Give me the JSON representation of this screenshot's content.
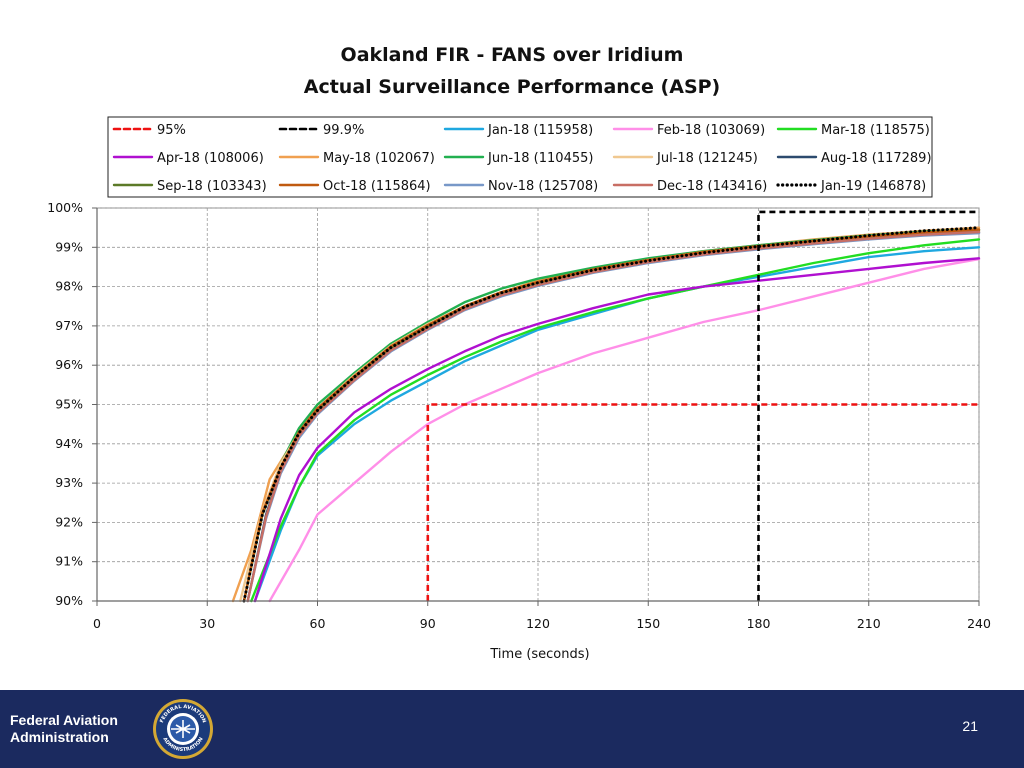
{
  "slide": {
    "title_line1": "Oakland FIR - FANS over Iridium",
    "title_line2": "Actual Surveillance Performance (ASP)",
    "page_number": "21"
  },
  "footer": {
    "agency_line1": "Federal Aviation",
    "agency_line2": "Administration",
    "seal_text_top": "FEDERAL AVIATION",
    "seal_text_bottom": "ADMINISTRATION",
    "background_color": "#1b2a5f"
  },
  "chart_data": {
    "type": "line",
    "title": "Oakland FIR - FANS over Iridium Actual Surveillance Performance (ASP)",
    "xlabel": "Time (seconds)",
    "ylabel": "",
    "xlim": [
      0,
      240
    ],
    "ylim": [
      90,
      100
    ],
    "x_ticks": [
      0,
      30,
      60,
      90,
      120,
      150,
      180,
      210,
      240
    ],
    "y_ticks": [
      90,
      91,
      92,
      93,
      94,
      95,
      96,
      97,
      98,
      99,
      100
    ],
    "x_tick_labels": [
      "0",
      "30",
      "60",
      "90",
      "120",
      "150",
      "180",
      "210",
      "240"
    ],
    "y_tick_labels": [
      "90%",
      "91%",
      "92%",
      "93%",
      "94%",
      "95%",
      "96%",
      "97%",
      "98%",
      "99%",
      "100%"
    ],
    "grid": true,
    "legend_position": "top",
    "reference_lines": [
      {
        "name": "95%",
        "label": "95%",
        "color": "#ee1111",
        "dash": "dashed",
        "points": [
          [
            90,
            90
          ],
          [
            90,
            95
          ],
          [
            240,
            95
          ]
        ]
      },
      {
        "name": "99.9%",
        "label": "99.9%",
        "color": "#000000",
        "dash": "dashed",
        "points": [
          [
            180,
            90
          ],
          [
            180,
            99.9
          ],
          [
            240,
            99.9
          ]
        ]
      }
    ],
    "series": [
      {
        "name": "Jan-18",
        "label": "Jan-18 (115958)",
        "color": "#1fa8e0",
        "points": [
          [
            43,
            90
          ],
          [
            50,
            91.8
          ],
          [
            55,
            92.9
          ],
          [
            60,
            93.7
          ],
          [
            70,
            94.5
          ],
          [
            80,
            95.1
          ],
          [
            90,
            95.6
          ],
          [
            100,
            96.1
          ],
          [
            110,
            96.5
          ],
          [
            120,
            96.9
          ],
          [
            135,
            97.3
          ],
          [
            150,
            97.7
          ],
          [
            165,
            98.0
          ],
          [
            180,
            98.25
          ],
          [
            195,
            98.5
          ],
          [
            210,
            98.75
          ],
          [
            225,
            98.9
          ],
          [
            240,
            99.0
          ]
        ]
      },
      {
        "name": "Feb-18",
        "label": "Feb-18 (103069)",
        "color": "#ff8fe8",
        "points": [
          [
            47,
            90
          ],
          [
            55,
            91.3
          ],
          [
            60,
            92.2
          ],
          [
            70,
            93.0
          ],
          [
            80,
            93.8
          ],
          [
            90,
            94.5
          ],
          [
            100,
            95.0
          ],
          [
            110,
            95.4
          ],
          [
            120,
            95.8
          ],
          [
            135,
            96.3
          ],
          [
            150,
            96.7
          ],
          [
            165,
            97.1
          ],
          [
            180,
            97.4
          ],
          [
            195,
            97.75
          ],
          [
            210,
            98.1
          ],
          [
            225,
            98.45
          ],
          [
            240,
            98.7
          ]
        ]
      },
      {
        "name": "Mar-18",
        "label": "Mar-18 (118575)",
        "color": "#22dd22",
        "points": [
          [
            42,
            90
          ],
          [
            50,
            91.9
          ],
          [
            55,
            92.9
          ],
          [
            60,
            93.75
          ],
          [
            70,
            94.6
          ],
          [
            80,
            95.25
          ],
          [
            90,
            95.75
          ],
          [
            100,
            96.2
          ],
          [
            110,
            96.6
          ],
          [
            120,
            96.95
          ],
          [
            135,
            97.35
          ],
          [
            150,
            97.7
          ],
          [
            165,
            98.0
          ],
          [
            180,
            98.3
          ],
          [
            195,
            98.6
          ],
          [
            210,
            98.85
          ],
          [
            225,
            99.05
          ],
          [
            240,
            99.2
          ]
        ]
      },
      {
        "name": "Apr-18",
        "label": "Apr-18 (108006)",
        "color": "#b010d0",
        "points": [
          [
            43,
            90
          ],
          [
            50,
            92.1
          ],
          [
            55,
            93.2
          ],
          [
            60,
            93.9
          ],
          [
            70,
            94.8
          ],
          [
            80,
            95.4
          ],
          [
            90,
            95.9
          ],
          [
            100,
            96.35
          ],
          [
            110,
            96.75
          ],
          [
            120,
            97.05
          ],
          [
            135,
            97.45
          ],
          [
            150,
            97.8
          ],
          [
            165,
            98.0
          ],
          [
            180,
            98.15
          ],
          [
            195,
            98.3
          ],
          [
            210,
            98.45
          ],
          [
            225,
            98.6
          ],
          [
            240,
            98.72
          ]
        ]
      },
      {
        "name": "May-18",
        "label": "May-18 (102067)",
        "color": "#f0a050",
        "points": [
          [
            37,
            90
          ],
          [
            42,
            91.3
          ],
          [
            47,
            93.1
          ],
          [
            55,
            94.3
          ],
          [
            60,
            94.9
          ],
          [
            70,
            95.7
          ],
          [
            80,
            96.45
          ],
          [
            90,
            97.0
          ],
          [
            100,
            97.5
          ],
          [
            110,
            97.85
          ],
          [
            120,
            98.15
          ],
          [
            135,
            98.45
          ],
          [
            150,
            98.7
          ],
          [
            165,
            98.9
          ],
          [
            180,
            99.05
          ],
          [
            195,
            99.2
          ],
          [
            210,
            99.32
          ],
          [
            225,
            99.42
          ],
          [
            240,
            99.5
          ]
        ]
      },
      {
        "name": "Jun-18",
        "label": "Jun-18 (110455)",
        "color": "#22b050",
        "points": [
          [
            40,
            90
          ],
          [
            45,
            92.2
          ],
          [
            50,
            93.5
          ],
          [
            55,
            94.4
          ],
          [
            60,
            95.0
          ],
          [
            70,
            95.8
          ],
          [
            80,
            96.55
          ],
          [
            90,
            97.1
          ],
          [
            100,
            97.6
          ],
          [
            110,
            97.95
          ],
          [
            120,
            98.2
          ],
          [
            135,
            98.48
          ],
          [
            150,
            98.72
          ],
          [
            165,
            98.9
          ],
          [
            180,
            99.05
          ],
          [
            195,
            99.18
          ],
          [
            210,
            99.3
          ],
          [
            225,
            99.4
          ],
          [
            240,
            99.45
          ]
        ]
      },
      {
        "name": "Jul-18",
        "label": "Jul-18 (121245)",
        "color": "#f0c890",
        "points": [
          [
            39,
            90
          ],
          [
            45,
            92.3
          ],
          [
            50,
            93.5
          ],
          [
            55,
            94.3
          ],
          [
            60,
            94.9
          ],
          [
            70,
            95.75
          ],
          [
            80,
            96.5
          ],
          [
            90,
            97.05
          ],
          [
            100,
            97.5
          ],
          [
            110,
            97.85
          ],
          [
            120,
            98.1
          ],
          [
            135,
            98.42
          ],
          [
            150,
            98.68
          ],
          [
            165,
            98.88
          ],
          [
            180,
            99.02
          ],
          [
            195,
            99.15
          ],
          [
            210,
            99.28
          ],
          [
            225,
            99.38
          ],
          [
            240,
            99.43
          ]
        ]
      },
      {
        "name": "Aug-18",
        "label": "Aug-18 (117289)",
        "color": "#2c4a6e",
        "points": [
          [
            41,
            90
          ],
          [
            46,
            92.2
          ],
          [
            50,
            93.3
          ],
          [
            55,
            94.2
          ],
          [
            60,
            94.8
          ],
          [
            70,
            95.65
          ],
          [
            80,
            96.4
          ],
          [
            90,
            96.95
          ],
          [
            100,
            97.45
          ],
          [
            110,
            97.8
          ],
          [
            120,
            98.05
          ],
          [
            135,
            98.38
          ],
          [
            150,
            98.62
          ],
          [
            165,
            98.82
          ],
          [
            180,
            98.97
          ],
          [
            195,
            99.1
          ],
          [
            210,
            99.22
          ],
          [
            225,
            99.32
          ],
          [
            240,
            99.38
          ]
        ]
      },
      {
        "name": "Sep-18",
        "label": "Sep-18 (103343)",
        "color": "#5c7a28",
        "points": [
          [
            40,
            90
          ],
          [
            45,
            92.2
          ],
          [
            50,
            93.4
          ],
          [
            55,
            94.3
          ],
          [
            60,
            94.85
          ],
          [
            70,
            95.7
          ],
          [
            80,
            96.45
          ],
          [
            90,
            97.0
          ],
          [
            100,
            97.5
          ],
          [
            110,
            97.85
          ],
          [
            120,
            98.1
          ],
          [
            135,
            98.42
          ],
          [
            150,
            98.65
          ],
          [
            165,
            98.85
          ],
          [
            180,
            99.0
          ],
          [
            195,
            99.13
          ],
          [
            210,
            99.25
          ],
          [
            225,
            99.35
          ],
          [
            240,
            99.42
          ]
        ]
      },
      {
        "name": "Oct-18",
        "label": "Oct-18 (115864)",
        "color": "#c05a10",
        "points": [
          [
            40,
            90
          ],
          [
            45,
            92.25
          ],
          [
            50,
            93.4
          ],
          [
            55,
            94.3
          ],
          [
            60,
            94.9
          ],
          [
            70,
            95.72
          ],
          [
            80,
            96.48
          ],
          [
            90,
            97.02
          ],
          [
            100,
            97.5
          ],
          [
            110,
            97.86
          ],
          [
            120,
            98.12
          ],
          [
            135,
            98.44
          ],
          [
            150,
            98.68
          ],
          [
            165,
            98.88
          ],
          [
            180,
            99.03
          ],
          [
            195,
            99.16
          ],
          [
            210,
            99.28
          ],
          [
            225,
            99.38
          ],
          [
            240,
            99.45
          ]
        ]
      },
      {
        "name": "Nov-18",
        "label": "Nov-18 (125708)",
        "color": "#7898c8",
        "points": [
          [
            41,
            90
          ],
          [
            46,
            92.1
          ],
          [
            50,
            93.25
          ],
          [
            55,
            94.15
          ],
          [
            60,
            94.75
          ],
          [
            70,
            95.6
          ],
          [
            80,
            96.35
          ],
          [
            90,
            96.9
          ],
          [
            100,
            97.4
          ],
          [
            110,
            97.75
          ],
          [
            120,
            98.02
          ],
          [
            135,
            98.35
          ],
          [
            150,
            98.6
          ],
          [
            165,
            98.8
          ],
          [
            180,
            98.95
          ],
          [
            195,
            99.08
          ],
          [
            210,
            99.2
          ],
          [
            225,
            99.3
          ],
          [
            240,
            99.36
          ]
        ]
      },
      {
        "name": "Dec-18",
        "label": "Dec-18 (143416)",
        "color": "#c86e64",
        "points": [
          [
            41,
            90
          ],
          [
            46,
            92.15
          ],
          [
            50,
            93.3
          ],
          [
            55,
            94.2
          ],
          [
            60,
            94.78
          ],
          [
            70,
            95.62
          ],
          [
            80,
            96.38
          ],
          [
            90,
            96.92
          ],
          [
            100,
            97.42
          ],
          [
            110,
            97.78
          ],
          [
            120,
            98.04
          ],
          [
            135,
            98.37
          ],
          [
            150,
            98.62
          ],
          [
            165,
            98.82
          ],
          [
            180,
            98.97
          ],
          [
            195,
            99.1
          ],
          [
            210,
            99.22
          ],
          [
            225,
            99.32
          ],
          [
            240,
            99.39
          ]
        ]
      },
      {
        "name": "Jan-19",
        "label": "Jan-19 (146878)",
        "color": "#000000",
        "dotted": true,
        "points": [
          [
            40,
            90
          ],
          [
            45,
            92.2
          ],
          [
            50,
            93.4
          ],
          [
            55,
            94.28
          ],
          [
            60,
            94.85
          ],
          [
            70,
            95.7
          ],
          [
            80,
            96.45
          ],
          [
            90,
            96.98
          ],
          [
            100,
            97.48
          ],
          [
            110,
            97.84
          ],
          [
            120,
            98.1
          ],
          [
            135,
            98.42
          ],
          [
            150,
            98.66
          ],
          [
            165,
            98.86
          ],
          [
            180,
            99.02
          ],
          [
            195,
            99.16
          ],
          [
            210,
            99.3
          ],
          [
            225,
            99.42
          ],
          [
            240,
            99.5
          ]
        ]
      }
    ]
  }
}
